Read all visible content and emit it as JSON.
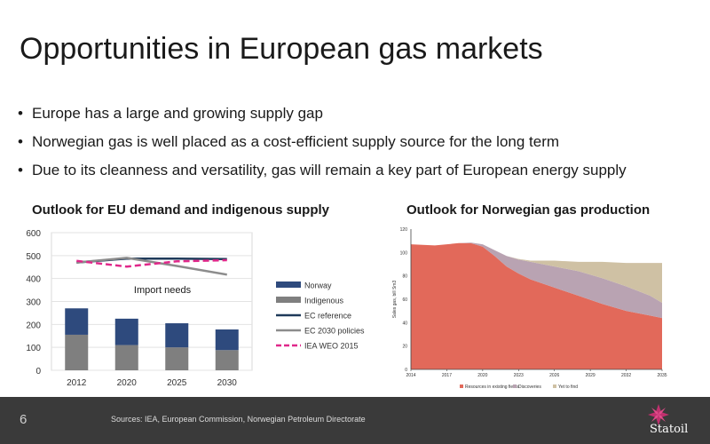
{
  "slide": {
    "title": "Opportunities in European gas markets",
    "bullets": [
      "Europe has a large and growing supply gap",
      "Norwegian gas is well placed as a cost-efficient supply source for the long term",
      "Due to its cleanness and versatility, gas will remain a key part of European energy supply"
    ],
    "page_number": "6",
    "sources": "Sources: IEA, European Commission, Norwegian Petroleum Directorate",
    "logo_text": "Statoil",
    "colors": {
      "footer": "#3a3a3a",
      "logo_pink": "#c0306e"
    }
  },
  "chart_data": [
    {
      "type": "bar",
      "title": "Outlook for EU demand and indigenous supply",
      "categories": [
        "2012",
        "2020",
        "2025",
        "2030"
      ],
      "ylim": [
        0,
        600
      ],
      "yticks": [
        0,
        100,
        200,
        300,
        400,
        500,
        600
      ],
      "annotation": "Import needs",
      "series": [
        {
          "name": "Norway",
          "kind": "bar",
          "stack": "supply",
          "color": "#2e4a7d",
          "values": [
            115,
            115,
            105,
            90
          ]
        },
        {
          "name": "Indigenous",
          "kind": "bar",
          "stack": "supply",
          "color": "#7f7f7f",
          "values": [
            155,
            110,
            100,
            88
          ]
        },
        {
          "name": "EC reference",
          "kind": "line",
          "color": "#1f3a5a",
          "dash": "solid",
          "values": [
            470,
            487,
            487,
            485
          ]
        },
        {
          "name": "EC 2030 policies",
          "kind": "line",
          "color": "#8c8c8c",
          "dash": "solid",
          "values": [
            470,
            490,
            455,
            417
          ]
        },
        {
          "name": "IEA WEO 2015",
          "kind": "line",
          "color": "#e0288a",
          "dash": "dashed",
          "values": [
            477,
            452,
            475,
            480
          ]
        }
      ],
      "legend": "right"
    },
    {
      "type": "area",
      "title": "Outlook for Norwegian gas production",
      "ylabel": "Sales gas, bill Sm3",
      "xlim": [
        2014,
        2035
      ],
      "ylim": [
        0,
        120
      ],
      "xticks": [
        2014,
        2017,
        2020,
        2023,
        2026,
        2029,
        2032,
        2035
      ],
      "yticks": [
        0,
        20,
        40,
        60,
        80,
        100,
        120
      ],
      "x": [
        2014,
        2016,
        2018,
        2019,
        2020,
        2021,
        2022,
        2023,
        2024,
        2026,
        2028,
        2030,
        2032,
        2034,
        2035
      ],
      "series": [
        {
          "name": "Resources in existing fields",
          "color": "#e2695a",
          "values": [
            107,
            106,
            108,
            108,
            105,
            97,
            88,
            82,
            77,
            70,
            63,
            56,
            50,
            46,
            44
          ]
        },
        {
          "name": "Discoveries",
          "color": "#b9a3b2",
          "values": [
            0,
            0,
            0,
            0.5,
            2,
            5,
            9,
            12,
            15,
            18,
            21,
            22,
            21,
            17,
            13
          ]
        },
        {
          "name": "Yet to find",
          "color": "#cfc1a4",
          "values": [
            0,
            0,
            0,
            0,
            0,
            0,
            0,
            0.5,
            1,
            5,
            8,
            14,
            20,
            28,
            34
          ]
        }
      ],
      "legend": "bottom"
    }
  ]
}
